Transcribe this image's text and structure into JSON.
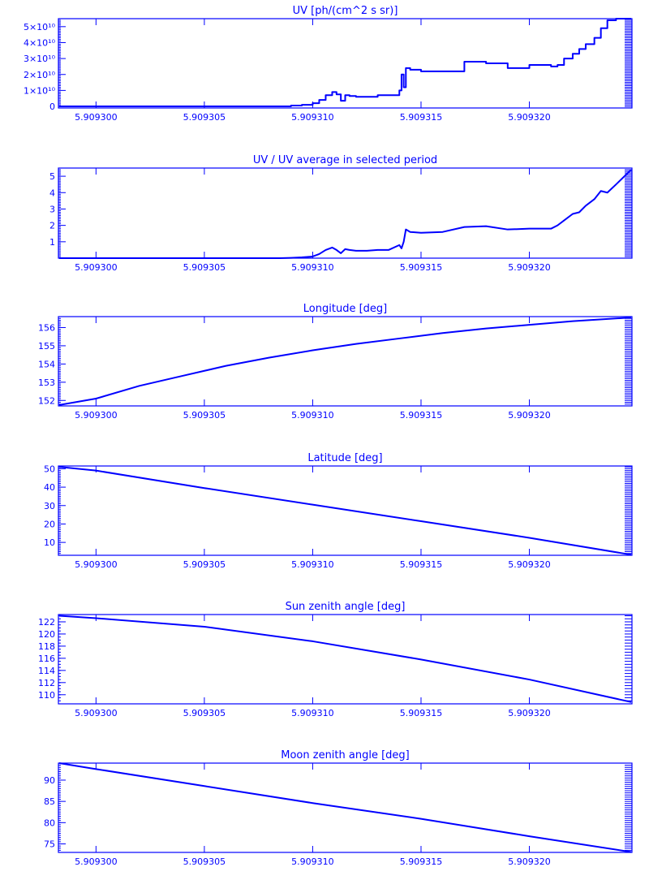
{
  "chart_data": [
    {
      "type": "line",
      "title": "UV [ph/(cm^2 s sr)]",
      "xlim": [
        5.909298265,
        5.909324735
      ],
      "ylim": [
        -0.1,
        5.5
      ],
      "x_ticks": [
        5.9093,
        5.909305,
        5.90931,
        5.909315,
        5.90932
      ],
      "x_tick_labels": [
        "5.909300",
        "5.909305",
        "5.909310",
        "5.909315",
        "5.909320"
      ],
      "y_ticks": [
        0,
        1,
        2,
        3,
        4,
        5
      ],
      "y_tick_labels": [
        "0",
        "1×10¹⁰",
        "2×10¹⁰",
        "3×10¹⁰",
        "4×10¹⁰",
        "5×10¹⁰"
      ],
      "y_minor_step": 0.1,
      "series": [
        {
          "step": true,
          "x": [
            5.9092983,
            5.9093085,
            5.909309,
            5.9093095,
            5.90931,
            5.9093103,
            5.9093106,
            5.9093109,
            5.9093111,
            5.9093113,
            5.9093115,
            5.9093117,
            5.909312,
            5.9093122,
            5.9093125,
            5.909313,
            5.9093135,
            5.909314,
            5.9093141,
            5.9093142,
            5.9093143,
            5.9093145,
            5.909315,
            5.909316,
            5.909317,
            5.909318,
            5.909319,
            5.90932,
            5.909321,
            5.9093213,
            5.9093216,
            5.909322,
            5.9093223,
            5.9093226,
            5.909323,
            5.9093233,
            5.9093236,
            5.909324,
            5.9093247
          ],
          "y": [
            0,
            0,
            0.05,
            0.1,
            0.2,
            0.4,
            0.7,
            0.9,
            0.75,
            0.35,
            0.7,
            0.65,
            0.6,
            0.6,
            0.6,
            0.7,
            0.7,
            1.0,
            2.0,
            1.2,
            2.4,
            2.3,
            2.2,
            2.2,
            2.8,
            2.7,
            2.4,
            2.6,
            2.5,
            2.6,
            3.0,
            3.3,
            3.6,
            3.9,
            4.3,
            4.9,
            5.4,
            5.5,
            5.5
          ]
        }
      ]
    },
    {
      "type": "line",
      "title": "UV / UV average in selected period",
      "xlim": [
        5.909298265,
        5.909324735
      ],
      "ylim": [
        0,
        5.5
      ],
      "x_ticks": [
        5.9093,
        5.909305,
        5.90931,
        5.909315,
        5.90932
      ],
      "x_tick_labels": [
        "5.909300",
        "5.909305",
        "5.909310",
        "5.909315",
        "5.909320"
      ],
      "y_ticks": [
        1,
        2,
        3,
        4,
        5
      ],
      "y_tick_labels": [
        "1",
        "2",
        "3",
        "4",
        "5"
      ],
      "y_minor_step": 0.1,
      "series": [
        {
          "step": false,
          "x": [
            5.9092983,
            5.9093085,
            5.909309,
            5.9093095,
            5.90931,
            5.9093103,
            5.9093106,
            5.9093109,
            5.9093111,
            5.9093113,
            5.9093115,
            5.9093117,
            5.909312,
            5.9093122,
            5.9093125,
            5.909313,
            5.9093135,
            5.909314,
            5.9093141,
            5.9093142,
            5.9093143,
            5.9093145,
            5.909315,
            5.909316,
            5.909317,
            5.909318,
            5.909319,
            5.90932,
            5.909321,
            5.9093213,
            5.9093216,
            5.909322,
            5.9093223,
            5.9093226,
            5.909323,
            5.9093233,
            5.9093236,
            5.909324,
            5.9093247
          ],
          "y": [
            0,
            0,
            0.02,
            0.05,
            0.1,
            0.25,
            0.5,
            0.65,
            0.5,
            0.3,
            0.55,
            0.5,
            0.45,
            0.45,
            0.45,
            0.5,
            0.5,
            0.8,
            0.6,
            1.0,
            1.75,
            1.6,
            1.55,
            1.6,
            1.9,
            1.95,
            1.75,
            1.8,
            1.8,
            2.0,
            2.3,
            2.7,
            2.8,
            3.2,
            3.6,
            4.1,
            4.0,
            4.5,
            5.4
          ]
        }
      ]
    },
    {
      "type": "line",
      "title": "Longitude [deg]",
      "xlim": [
        5.909298265,
        5.909324735
      ],
      "ylim": [
        151.7,
        156.6
      ],
      "x_ticks": [
        5.9093,
        5.909305,
        5.90931,
        5.909315,
        5.90932
      ],
      "x_tick_labels": [
        "5.909300",
        "5.909305",
        "5.909310",
        "5.909315",
        "5.909320"
      ],
      "y_ticks": [
        152,
        153,
        154,
        155,
        156
      ],
      "y_tick_labels": [
        "152",
        "153",
        "154",
        "155",
        "156"
      ],
      "y_minor_step": 0.1,
      "series": [
        {
          "step": false,
          "x": [
            5.9092983,
            5.9093,
            5.909302,
            5.909304,
            5.909306,
            5.909308,
            5.90931,
            5.909312,
            5.909314,
            5.909316,
            5.909318,
            5.90932,
            5.909322,
            5.9093247
          ],
          "y": [
            151.75,
            152.1,
            152.8,
            153.35,
            153.9,
            154.35,
            154.75,
            155.1,
            155.4,
            155.7,
            155.95,
            156.15,
            156.35,
            156.55
          ]
        }
      ]
    },
    {
      "type": "line",
      "title": "Latitude [deg]",
      "xlim": [
        5.909298265,
        5.909324735
      ],
      "ylim": [
        3,
        51.5
      ],
      "x_ticks": [
        5.9093,
        5.909305,
        5.90931,
        5.909315,
        5.90932
      ],
      "x_tick_labels": [
        "5.909300",
        "5.909305",
        "5.909310",
        "5.909315",
        "5.909320"
      ],
      "y_ticks": [
        10,
        20,
        30,
        40,
        50
      ],
      "y_tick_labels": [
        "10",
        "20",
        "30",
        "40",
        "50"
      ],
      "y_minor_step": 1,
      "series": [
        {
          "step": false,
          "x": [
            5.9092983,
            5.9093,
            5.909305,
            5.90931,
            5.909315,
            5.90932,
            5.9093247
          ],
          "y": [
            51,
            49,
            39.5,
            30.5,
            21.5,
            12.5,
            3.3
          ]
        }
      ]
    },
    {
      "type": "line",
      "title": "Sun zenith angle [deg]",
      "xlim": [
        5.909298265,
        5.909324735
      ],
      "ylim": [
        108.5,
        123.2
      ],
      "x_ticks": [
        5.9093,
        5.909305,
        5.90931,
        5.909315,
        5.90932
      ],
      "x_tick_labels": [
        "5.909300",
        "5.909305",
        "5.909310",
        "5.909315",
        "5.909320"
      ],
      "y_ticks": [
        110,
        112,
        114,
        116,
        118,
        120,
        122
      ],
      "y_tick_labels": [
        "110",
        "112",
        "114",
        "116",
        "118",
        "120",
        "122"
      ],
      "y_minor_step": 0.5,
      "series": [
        {
          "step": false,
          "x": [
            5.9092983,
            5.9093,
            5.909305,
            5.90931,
            5.909315,
            5.90932,
            5.9093247
          ],
          "y": [
            123,
            122.6,
            121.2,
            118.8,
            115.8,
            112.5,
            108.8
          ]
        }
      ]
    },
    {
      "type": "line",
      "title": "Moon zenith angle [deg]",
      "xlim": [
        5.909298265,
        5.909324735
      ],
      "ylim": [
        73,
        94
      ],
      "x_ticks": [
        5.9093,
        5.909305,
        5.90931,
        5.909315,
        5.90932
      ],
      "x_tick_labels": [
        "5.909300",
        "5.909305",
        "5.909310",
        "5.909315",
        "5.909320"
      ],
      "y_ticks": [
        75,
        80,
        85,
        90
      ],
      "y_tick_labels": [
        "75",
        "80",
        "85",
        "90"
      ],
      "y_minor_step": 0.5,
      "series": [
        {
          "step": false,
          "x": [
            5.9092983,
            5.9093,
            5.909305,
            5.90931,
            5.909315,
            5.90932,
            5.9093247
          ],
          "y": [
            94,
            92.6,
            88.6,
            84.6,
            80.9,
            76.8,
            73.1
          ]
        }
      ]
    }
  ]
}
